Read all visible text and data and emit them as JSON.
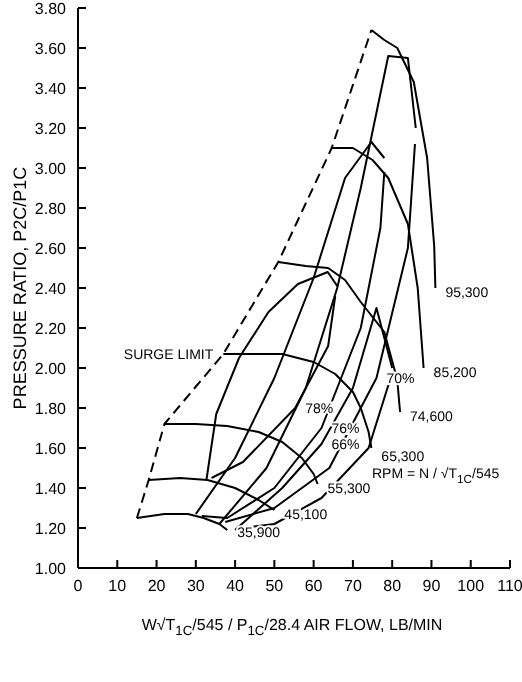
{
  "chart_data": {
    "type": "line",
    "ylabel": "PRESSURE RATIO, P2C/P1C",
    "xlabel": "W√T$_{1C}$/545 / P$_{1C}$/28.4 AIR FLOW, LB/MIN",
    "marker": "none",
    "xlim": [
      0,
      110
    ],
    "xticks": [
      0,
      10,
      20,
      30,
      40,
      50,
      60,
      70,
      80,
      90,
      100,
      110
    ],
    "ylim": [
      1,
      3.8
    ],
    "yticks": [
      {
        "value": 1,
        "label": "1.00"
      },
      {
        "value": 1.2,
        "label": "1.20"
      },
      {
        "value": 1.4,
        "label": "1.40"
      },
      {
        "value": 1.6,
        "label": "1.60"
      },
      {
        "value": 1.8,
        "label": "1.80"
      },
      {
        "value": 2,
        "label": "2.00"
      },
      {
        "value": 2.2,
        "label": "2.20"
      },
      {
        "value": 2.4,
        "label": "2.40"
      },
      {
        "value": 2.6,
        "label": "2.60"
      },
      {
        "value": 2.8,
        "label": "2.80"
      },
      {
        "value": 3,
        "label": "3.00"
      },
      {
        "value": 3.2,
        "label": "3.20"
      },
      {
        "value": 3.4,
        "label": "3.40"
      },
      {
        "value": 3.6,
        "label": "3.60"
      },
      {
        "value": 3.8,
        "label": "3.80"
      }
    ],
    "series": [
      {
        "color": "#000000",
        "line_style": "dashed",
        "x": [
          15,
          18,
          22,
          37,
          51,
          64.6,
          74.7
        ],
        "values": [
          1.25,
          1.44,
          1.72,
          2.07,
          2.53,
          3.1,
          3.69
        ]
      },
      {
        "color": "#000000",
        "x": [
          15,
          22,
          28,
          32,
          36,
          38
        ],
        "values": [
          1.25,
          1.27,
          1.27,
          1.25,
          1.22,
          1.19
        ]
      },
      {
        "color": "#000000",
        "x": [
          18,
          26,
          33,
          40,
          46,
          50
        ],
        "values": [
          1.44,
          1.45,
          1.44,
          1.4,
          1.34,
          1.29
        ]
      },
      {
        "color": "#000000",
        "x": [
          22,
          30,
          38,
          46,
          52,
          57,
          60,
          61
        ],
        "values": [
          1.72,
          1.72,
          1.71,
          1.68,
          1.63,
          1.55,
          1.47,
          1.42
        ]
      },
      {
        "color": "#000000",
        "x": [
          37,
          45,
          52,
          60,
          65.5,
          70,
          72,
          74,
          74.7
        ],
        "values": [
          2.07,
          2.07,
          2.07,
          2.03,
          1.97,
          1.88,
          1.8,
          1.68,
          1.6
        ]
      },
      {
        "color": "#000000",
        "x": [
          51,
          58,
          63.7,
          68,
          72,
          78,
          81.3,
          82
        ],
        "values": [
          2.53,
          2.51,
          2.5,
          2.44,
          2.33,
          2.18,
          1.94,
          1.78
        ]
      },
      {
        "color": "#000000",
        "x": [
          64.6,
          70,
          75,
          79,
          84,
          86.5,
          88
        ],
        "values": [
          3.1,
          3.1,
          3.04,
          2.95,
          2.72,
          2.4,
          2
        ]
      },
      {
        "color": "#000000",
        "x": [
          74.7,
          78,
          81.3,
          85.5,
          88.9,
          90.7,
          91
        ],
        "values": [
          3.69,
          3.64,
          3.6,
          3.43,
          3.05,
          2.61,
          2.4
        ]
      },
      {
        "color": "#000000",
        "x": [
          32.7,
          35.2,
          41,
          48.5,
          56,
          63.6,
          66
        ],
        "values": [
          1.44,
          1.77,
          2.05,
          2.28,
          2.42,
          2.48,
          2.41
        ]
      },
      {
        "color": "#000000",
        "x": [
          34,
          42,
          55.3,
          63.7,
          65.5
        ],
        "values": [
          1.45,
          1.53,
          1.8,
          2.11,
          2.36
        ]
      },
      {
        "color": "#000000",
        "x": [
          30,
          40,
          50,
          60,
          68,
          74.7,
          78
        ],
        "values": [
          1.27,
          1.55,
          1.95,
          2.45,
          2.95,
          3.13,
          3.05
        ]
      },
      {
        "color": "#000000",
        "x": [
          31.5,
          38,
          50,
          62,
          72,
          77,
          78
        ],
        "values": [
          1.26,
          1.25,
          1.4,
          1.7,
          2.2,
          2.7,
          2.98
        ]
      },
      {
        "color": "#000000",
        "x": [
          36,
          48,
          58,
          66,
          72,
          79,
          84,
          86
        ],
        "values": [
          1.22,
          1.5,
          1.9,
          2.4,
          2.9,
          3.56,
          3.55,
          3.2
        ]
      },
      {
        "color": "#000000",
        "x": [
          37.5,
          50,
          64,
          76,
          84,
          85.8
        ],
        "values": [
          1.23,
          1.3,
          1.5,
          1.95,
          2.6,
          3.12
        ]
      },
      {
        "color": "#000000",
        "x": [
          40,
          52,
          62,
          70,
          76,
          80
        ],
        "values": [
          1.19,
          1.4,
          1.62,
          1.9,
          2.3,
          2
        ]
      },
      {
        "color": "#000000",
        "x": [
          41.5,
          50,
          62,
          74,
          79.6
        ],
        "values": [
          1.2,
          1.22,
          1.35,
          1.6,
          1.95
        ]
      }
    ],
    "annotations": [
      {
        "text": "95,300",
        "x": 91,
        "y": 2.38
      },
      {
        "text": "85,200",
        "x": 88,
        "y": 1.98
      },
      {
        "text": "74,600",
        "x": 82,
        "y": 1.76
      },
      {
        "text": "65,300",
        "x": 74.7,
        "y": 1.56
      },
      {
        "text": "55,300",
        "x": 61,
        "y": 1.4
      },
      {
        "text": "45,100",
        "x": 50,
        "y": 1.27
      },
      {
        "text": "35,900",
        "x": 38,
        "y": 1.18
      },
      {
        "text": "78%",
        "x": 55.3,
        "y": 1.8
      },
      {
        "text": "76%",
        "x": 62,
        "y": 1.7
      },
      {
        "text": "70%",
        "x": 76,
        "y": 1.95
      },
      {
        "text": "66%",
        "x": 62,
        "y": 1.62
      },
      {
        "text": "SURGE LIMIT",
        "x": 37,
        "y": 2.07
      },
      "RPM = N / √T$_{1C}$/545"
    ]
  }
}
